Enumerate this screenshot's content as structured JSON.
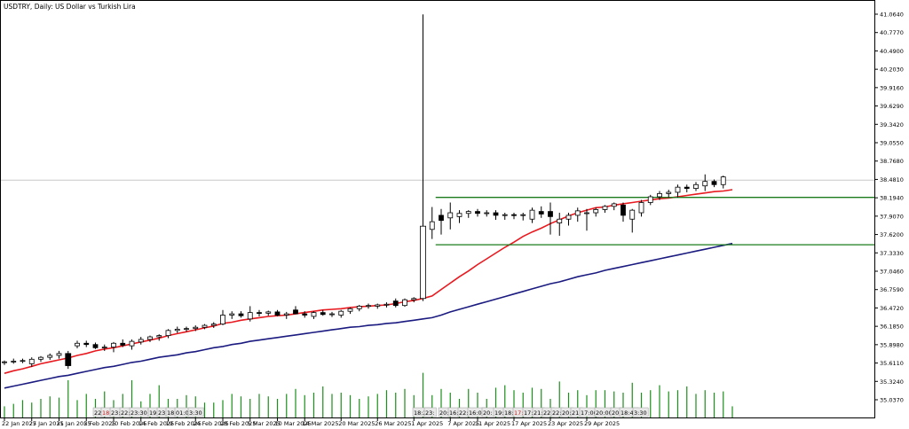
{
  "window": {
    "title": "USDTRY, Daily:  US Dollar vs Turkish Lira"
  },
  "colors": {
    "background": "#ffffff",
    "frame": "#000000",
    "candle_up_fill": "#ffffff",
    "candle_down_fill": "#000000",
    "candle_stroke": "#000000",
    "ma_fast": "#e8191f",
    "ma_slow": "#1a1a80",
    "range_lines": "#1b7a1b",
    "volume": "#1b8f1b",
    "current_price_line": "#c8c8c8",
    "session_box_fill": "#e9e9e9",
    "session_box_highlight": "#c21a1a"
  },
  "chart_data": {
    "type": "candlestick",
    "symbol": "USDTRY",
    "timeframe": "Daily",
    "title": "USDTRY, Daily:  US Dollar vs Turkish Lira",
    "y_ticks": [
      "41.0640",
      "40.7770",
      "40.4900",
      "40.2030",
      "39.9160",
      "39.6290",
      "39.3420",
      "39.0550",
      "38.7680",
      "38.4810",
      "38.1940",
      "37.9070",
      "37.6200",
      "37.3330",
      "37.0460",
      "36.7590",
      "36.4720",
      "36.1850",
      "35.8980",
      "35.6110",
      "35.3240",
      "35.0370"
    ],
    "x_tick_labels": [
      "22 Jan 2025",
      "27 Jan 2025",
      "31 Jan 2025",
      "5 Feb 2025",
      "10 Feb 2025",
      "14 Feb 2025",
      "19 Feb 2025",
      "24 Feb 2025",
      "28 Feb 2025",
      "5 Mar 2025",
      "10 Mar 2025",
      "14 Mar 2025",
      "20 Mar 2025",
      "26 Mar 2025",
      "1 Apr 2025",
      "7 Apr 2025",
      "11 Apr 2025",
      "17 Apr 2025",
      "23 Apr 2025",
      "29 Apr 2025"
    ],
    "x_tick_indices": [
      0,
      3,
      6,
      9,
      12,
      15,
      18,
      21,
      24,
      27,
      30,
      33,
      37,
      41,
      45,
      49,
      52,
      56,
      60,
      64
    ],
    "candles": [
      {
        "o": 35.62,
        "h": 35.65,
        "l": 35.58,
        "c": 35.63
      },
      {
        "o": 35.63,
        "h": 35.68,
        "l": 35.6,
        "c": 35.64
      },
      {
        "o": 35.64,
        "h": 35.68,
        "l": 35.61,
        "c": 35.65
      },
      {
        "o": 35.6,
        "h": 35.7,
        "l": 35.55,
        "c": 35.67
      },
      {
        "o": 35.67,
        "h": 35.72,
        "l": 35.63,
        "c": 35.7
      },
      {
        "o": 35.7,
        "h": 35.76,
        "l": 35.66,
        "c": 35.73
      },
      {
        "o": 35.73,
        "h": 35.8,
        "l": 35.68,
        "c": 35.76
      },
      {
        "o": 35.76,
        "h": 35.8,
        "l": 35.52,
        "c": 35.57
      },
      {
        "o": 35.88,
        "h": 35.96,
        "l": 35.84,
        "c": 35.92
      },
      {
        "o": 35.92,
        "h": 35.96,
        "l": 35.86,
        "c": 35.9
      },
      {
        "o": 35.9,
        "h": 35.93,
        "l": 35.83,
        "c": 35.85
      },
      {
        "o": 35.85,
        "h": 35.9,
        "l": 35.8,
        "c": 35.86
      },
      {
        "o": 35.86,
        "h": 35.94,
        "l": 35.78,
        "c": 35.92
      },
      {
        "o": 35.92,
        "h": 35.98,
        "l": 35.86,
        "c": 35.89
      },
      {
        "o": 35.88,
        "h": 35.98,
        "l": 35.82,
        "c": 35.95
      },
      {
        "o": 35.94,
        "h": 36.02,
        "l": 35.9,
        "c": 35.98
      },
      {
        "o": 35.98,
        "h": 36.04,
        "l": 35.94,
        "c": 36.02
      },
      {
        "o": 36.02,
        "h": 36.06,
        "l": 35.96,
        "c": 36.04
      },
      {
        "o": 36.04,
        "h": 36.14,
        "l": 36.0,
        "c": 36.12
      },
      {
        "o": 36.12,
        "h": 36.18,
        "l": 36.08,
        "c": 36.14
      },
      {
        "o": 36.14,
        "h": 36.18,
        "l": 36.1,
        "c": 36.15
      },
      {
        "o": 36.15,
        "h": 36.2,
        "l": 36.11,
        "c": 36.17
      },
      {
        "o": 36.17,
        "h": 36.22,
        "l": 36.14,
        "c": 36.2
      },
      {
        "o": 36.2,
        "h": 36.25,
        "l": 36.16,
        "c": 36.22
      },
      {
        "o": 36.22,
        "h": 36.44,
        "l": 36.2,
        "c": 36.36
      },
      {
        "o": 36.36,
        "h": 36.42,
        "l": 36.3,
        "c": 36.38
      },
      {
        "o": 36.38,
        "h": 36.42,
        "l": 36.32,
        "c": 36.35
      },
      {
        "o": 36.3,
        "h": 36.5,
        "l": 36.26,
        "c": 36.4
      },
      {
        "o": 36.4,
        "h": 36.44,
        "l": 36.34,
        "c": 36.39
      },
      {
        "o": 36.39,
        "h": 36.43,
        "l": 36.35,
        "c": 36.41
      },
      {
        "o": 36.41,
        "h": 36.44,
        "l": 36.34,
        "c": 36.36
      },
      {
        "o": 36.36,
        "h": 36.41,
        "l": 36.3,
        "c": 36.38
      },
      {
        "o": 36.44,
        "h": 36.5,
        "l": 36.4,
        "c": 36.38
      },
      {
        "o": 36.38,
        "h": 36.42,
        "l": 36.32,
        "c": 36.36
      },
      {
        "o": 36.34,
        "h": 36.42,
        "l": 36.3,
        "c": 36.4
      },
      {
        "o": 36.4,
        "h": 36.44,
        "l": 36.35,
        "c": 36.37
      },
      {
        "o": 36.37,
        "h": 36.41,
        "l": 36.33,
        "c": 36.38
      },
      {
        "o": 36.36,
        "h": 36.44,
        "l": 36.32,
        "c": 36.42
      },
      {
        "o": 36.42,
        "h": 36.48,
        "l": 36.38,
        "c": 36.46
      },
      {
        "o": 36.46,
        "h": 36.52,
        "l": 36.42,
        "c": 36.5
      },
      {
        "o": 36.5,
        "h": 36.54,
        "l": 36.46,
        "c": 36.51
      },
      {
        "o": 36.5,
        "h": 36.54,
        "l": 36.46,
        "c": 36.52
      },
      {
        "o": 36.52,
        "h": 36.56,
        "l": 36.48,
        "c": 36.53
      },
      {
        "o": 36.58,
        "h": 36.62,
        "l": 36.48,
        "c": 36.51
      },
      {
        "o": 36.51,
        "h": 36.62,
        "l": 36.49,
        "c": 36.6
      },
      {
        "o": 36.6,
        "h": 36.64,
        "l": 36.56,
        "c": 36.62
      },
      {
        "o": 36.62,
        "h": 41.06,
        "l": 36.58,
        "c": 37.75
      },
      {
        "o": 37.7,
        "h": 38.05,
        "l": 37.55,
        "c": 37.82
      },
      {
        "o": 37.92,
        "h": 38.02,
        "l": 37.62,
        "c": 37.84
      },
      {
        "o": 37.88,
        "h": 38.12,
        "l": 37.7,
        "c": 37.96
      },
      {
        "o": 37.9,
        "h": 38.0,
        "l": 37.8,
        "c": 37.95
      },
      {
        "o": 37.95,
        "h": 38.0,
        "l": 37.88,
        "c": 37.98
      },
      {
        "o": 37.98,
        "h": 38.02,
        "l": 37.9,
        "c": 37.95
      },
      {
        "o": 37.95,
        "h": 38.0,
        "l": 37.9,
        "c": 37.96
      },
      {
        "o": 37.96,
        "h": 38.0,
        "l": 37.85,
        "c": 37.92
      },
      {
        "o": 37.92,
        "h": 37.96,
        "l": 37.85,
        "c": 37.93
      },
      {
        "o": 37.93,
        "h": 37.96,
        "l": 37.86,
        "c": 37.92
      },
      {
        "o": 37.92,
        "h": 37.96,
        "l": 37.84,
        "c": 37.93
      },
      {
        "o": 37.86,
        "h": 38.04,
        "l": 37.8,
        "c": 38.0
      },
      {
        "o": 37.98,
        "h": 38.06,
        "l": 37.88,
        "c": 37.94
      },
      {
        "o": 37.98,
        "h": 38.12,
        "l": 37.62,
        "c": 37.9
      },
      {
        "o": 37.8,
        "h": 37.96,
        "l": 37.6,
        "c": 37.86
      },
      {
        "o": 37.86,
        "h": 37.96,
        "l": 37.76,
        "c": 37.92
      },
      {
        "o": 37.92,
        "h": 38.04,
        "l": 37.82,
        "c": 37.99
      },
      {
        "o": 37.95,
        "h": 38.02,
        "l": 37.68,
        "c": 37.96
      },
      {
        "o": 37.96,
        "h": 38.04,
        "l": 37.9,
        "c": 38.01
      },
      {
        "o": 38.01,
        "h": 38.08,
        "l": 37.96,
        "c": 38.06
      },
      {
        "o": 38.06,
        "h": 38.12,
        "l": 38.0,
        "c": 38.1
      },
      {
        "o": 38.08,
        "h": 38.12,
        "l": 37.82,
        "c": 37.92
      },
      {
        "o": 37.86,
        "h": 38.02,
        "l": 37.65,
        "c": 38.0
      },
      {
        "o": 37.96,
        "h": 38.16,
        "l": 37.9,
        "c": 38.12
      },
      {
        "o": 38.12,
        "h": 38.24,
        "l": 38.08,
        "c": 38.21
      },
      {
        "o": 38.21,
        "h": 38.3,
        "l": 38.16,
        "c": 38.26
      },
      {
        "o": 38.26,
        "h": 38.32,
        "l": 38.2,
        "c": 38.28
      },
      {
        "o": 38.28,
        "h": 38.4,
        "l": 38.2,
        "c": 38.36
      },
      {
        "o": 38.36,
        "h": 38.4,
        "l": 38.28,
        "c": 38.34
      },
      {
        "o": 38.34,
        "h": 38.44,
        "l": 38.3,
        "c": 38.4
      },
      {
        "o": 38.38,
        "h": 38.56,
        "l": 38.3,
        "c": 38.45
      },
      {
        "o": 38.45,
        "h": 38.48,
        "l": 38.36,
        "c": 38.4
      },
      {
        "o": 38.4,
        "h": 38.54,
        "l": 38.34,
        "c": 38.52
      }
    ],
    "ma_fast": [
      35.45,
      35.49,
      35.52,
      35.56,
      35.6,
      35.63,
      35.66,
      35.69,
      35.73,
      35.76,
      35.8,
      35.83,
      35.85,
      35.88,
      35.91,
      35.94,
      35.97,
      36.0,
      36.04,
      36.07,
      36.1,
      36.13,
      36.16,
      36.19,
      36.23,
      36.25,
      36.28,
      36.3,
      36.32,
      36.34,
      36.35,
      36.36,
      36.38,
      36.4,
      36.42,
      36.44,
      36.45,
      36.46,
      36.48,
      36.49,
      36.5,
      36.51,
      36.52,
      36.54,
      36.57,
      36.59,
      36.62,
      36.66,
      36.76,
      36.86,
      36.96,
      37.05,
      37.15,
      37.24,
      37.33,
      37.42,
      37.5,
      37.59,
      37.66,
      37.72,
      37.79,
      37.85,
      37.91,
      37.96,
      38.0,
      38.04,
      38.05,
      38.08,
      38.1,
      38.12,
      38.14,
      38.16,
      38.18,
      38.19,
      38.21,
      38.23,
      38.25,
      38.27,
      38.29,
      38.3,
      38.32
    ],
    "ma_slow": [
      35.22,
      35.25,
      35.28,
      35.31,
      35.34,
      35.37,
      35.4,
      35.42,
      35.45,
      35.48,
      35.51,
      35.54,
      35.56,
      35.59,
      35.62,
      35.64,
      35.67,
      35.7,
      35.72,
      35.74,
      35.77,
      35.79,
      35.82,
      35.85,
      35.87,
      35.9,
      35.92,
      35.95,
      35.97,
      35.99,
      36.01,
      36.03,
      36.05,
      36.07,
      36.09,
      36.11,
      36.13,
      36.15,
      36.17,
      36.18,
      36.2,
      36.21,
      36.23,
      36.24,
      36.26,
      36.28,
      36.3,
      36.32,
      36.36,
      36.41,
      36.45,
      36.49,
      36.53,
      36.57,
      36.61,
      36.65,
      36.69,
      36.73,
      36.77,
      36.81,
      36.85,
      36.88,
      36.92,
      36.96,
      36.99,
      37.02,
      37.06,
      37.09,
      37.12,
      37.15,
      37.18,
      37.21,
      37.24,
      37.27,
      37.3,
      37.33,
      37.36,
      37.39,
      37.42,
      37.45,
      37.48
    ],
    "horizontal_lines": [
      38.2,
      37.46
    ],
    "range_lines_start_index": 47,
    "current_price_line": 38.47,
    "volume": [
      0.18,
      0.22,
      0.28,
      0.24,
      0.3,
      0.34,
      0.32,
      0.6,
      0.28,
      0.38,
      0.3,
      0.42,
      0.28,
      0.38,
      0.6,
      0.26,
      0.38,
      0.52,
      0.3,
      0.3,
      0.36,
      0.34,
      0.24,
      0.24,
      0.28,
      0.38,
      0.34,
      0.3,
      0.38,
      0.34,
      0.3,
      0.38,
      0.46,
      0.36,
      0.4,
      0.5,
      0.38,
      0.4,
      0.36,
      0.3,
      0.34,
      0.38,
      0.44,
      0.4,
      0.46,
      0.36,
      0.72,
      0.36,
      0.46,
      0.4,
      0.3,
      0.46,
      0.4,
      0.3,
      0.48,
      0.52,
      0.44,
      0.4,
      0.48,
      0.46,
      0.3,
      0.58,
      0.4,
      0.44,
      0.36,
      0.44,
      0.44,
      0.42,
      0.4,
      0.56,
      0.4,
      0.44,
      0.52,
      0.42,
      0.44,
      0.5,
      0.38,
      0.44,
      0.4,
      0.42,
      0.18
    ],
    "session_labels": [
      {
        "t": "22:",
        "x": 105
      },
      {
        "t": "18:",
        "x": 114,
        "red": true
      },
      {
        "t": "23:",
        "x": 124
      },
      {
        "t": "22:",
        "x": 135
      },
      {
        "t": "23:30",
        "x": 146
      },
      {
        "t": "19:",
        "x": 167
      },
      {
        "t": "23:",
        "x": 177
      },
      {
        "t": "18:",
        "x": 187
      },
      {
        "t": "01:05",
        "x": 197
      },
      {
        "t": "3:30",
        "x": 212
      },
      {
        "t": "18:20",
        "x": 465
      },
      {
        "t": "23:",
        "x": 478
      },
      {
        "t": "20:",
        "x": 494
      },
      {
        "t": "16:",
        "x": 505
      },
      {
        "t": "22:",
        "x": 516
      },
      {
        "t": "16:05",
        "x": 527
      },
      {
        "t": "20:",
        "x": 543
      },
      {
        "t": "19:",
        "x": 556
      },
      {
        "t": "18:",
        "x": 567
      },
      {
        "t": "17:",
        "x": 578,
        "red": true
      },
      {
        "t": "17:",
        "x": 589
      },
      {
        "t": "21:",
        "x": 600
      },
      {
        "t": "22:",
        "x": 611
      },
      {
        "t": "22:",
        "x": 621
      },
      {
        "t": "20:",
        "x": 632
      },
      {
        "t": "21:",
        "x": 643
      },
      {
        "t": "17:00",
        "x": 653
      },
      {
        "t": "20:00",
        "x": 670
      },
      {
        "t": "20:",
        "x": 688
      },
      {
        "t": "18:45",
        "x": 698
      },
      {
        "t": "3:30",
        "x": 713
      }
    ]
  }
}
